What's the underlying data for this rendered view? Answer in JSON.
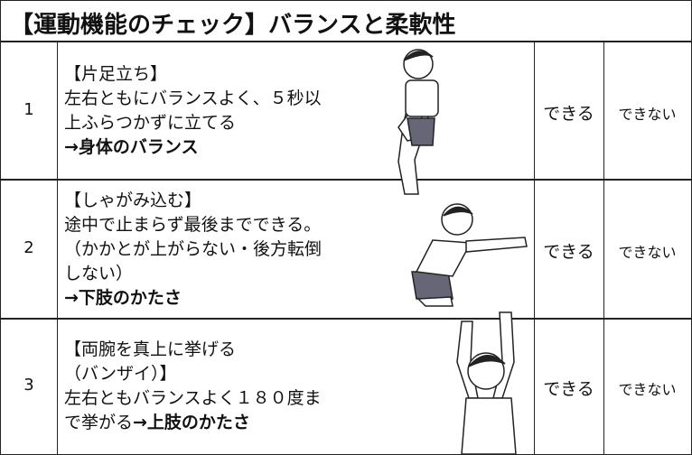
{
  "title": "【運動機能のチェック】バランスと柔軟性",
  "rows": [
    {
      "number": "1",
      "lines": [
        [
          {
            "text": "【片足立ち】",
            "bold": false
          }
        ],
        [
          {
            "text": "左右ともにバランスよく、５秒以",
            "bold": false
          }
        ],
        [
          {
            "text": "上ふらつかずに立てる",
            "bold": false
          }
        ],
        [
          {
            "text": "→身体のバランス",
            "bold": true
          }
        ]
      ],
      "option_yes": "できる",
      "option_no": "できない"
    },
    {
      "number": "2",
      "lines": [
        [
          {
            "text": "【しゃがみ込む】",
            "bold": false
          }
        ],
        [
          {
            "text": "途中で止まらず最後までできる。",
            "bold": false
          }
        ],
        [
          {
            "text": "（かかとが上がらない・後方転倒",
            "bold": false
          }
        ],
        [
          {
            "text": "しない）",
            "bold": false
          }
        ],
        [
          {
            "text": "→下肢のかたさ",
            "bold": true
          }
        ]
      ],
      "option_yes": "できる",
      "option_no": "できない"
    },
    {
      "number": "3",
      "lines": [
        [
          {
            "text": "【両腕を真上に挙げる",
            "bold": false
          }
        ],
        [
          {
            "text": "（バンザイ）】",
            "bold": false
          }
        ],
        [
          {
            "text": "左右ともバランスよく１８０度ま",
            "bold": false
          }
        ],
        [
          {
            "text": "で挙がる",
            "bold": false
          },
          {
            "text": "→上肢のかたさ",
            "bold": true
          }
        ]
      ],
      "option_yes": "できる",
      "option_no": "できない"
    }
  ]
}
